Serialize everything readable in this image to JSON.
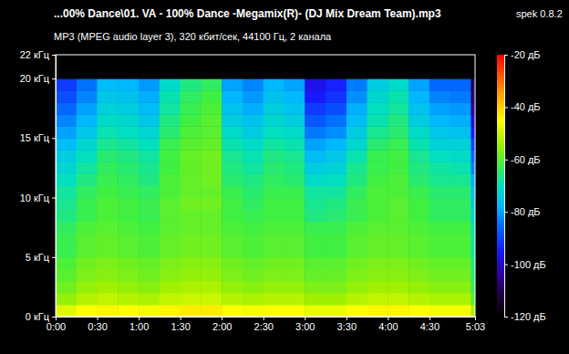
{
  "chart_data": {
    "type": "heatmap",
    "title": "...00% Dance\\01. VA - 100% Dance -Megamix(R)- (DJ Mix Dream Team).mp3",
    "subtitle": "MP3 (MPEG audio layer 3), 320 кбит/сек, 44100 Гц, 2 канала",
    "annotations": [
      "spek 0.8.2"
    ],
    "xlim": [
      0,
      303
    ],
    "xticks": [
      {
        "value": 0,
        "label": "0:00"
      },
      {
        "value": 30,
        "label": "0:30"
      },
      {
        "value": 60,
        "label": "1:00"
      },
      {
        "value": 90,
        "label": "1:30"
      },
      {
        "value": 120,
        "label": "2:00"
      },
      {
        "value": 150,
        "label": "2:30"
      },
      {
        "value": 180,
        "label": "3:00"
      },
      {
        "value": 210,
        "label": "3:30"
      },
      {
        "value": 240,
        "label": "4:00"
      },
      {
        "value": 270,
        "label": "4:30"
      },
      {
        "value": 303,
        "label": "5:03"
      }
    ],
    "ylim": [
      0,
      22
    ],
    "yticks": [
      {
        "value": 0,
        "label": "0 кГц"
      },
      {
        "value": 5,
        "label": "5 кГц"
      },
      {
        "value": 10,
        "label": "10 кГц"
      },
      {
        "value": 15,
        "label": "15 кГц"
      },
      {
        "value": 20,
        "label": "20 кГц"
      },
      {
        "value": 22,
        "label": "22 кГц"
      }
    ],
    "x_bins": [
      0,
      15,
      30,
      45,
      60,
      75,
      90,
      105,
      120,
      135,
      150,
      165,
      180,
      195,
      210,
      225,
      240,
      255,
      270,
      285,
      300,
      303
    ],
    "y_bins": [
      0,
      1,
      2,
      3,
      4,
      5,
      6,
      7,
      8,
      9,
      10,
      11,
      12,
      13,
      14,
      15,
      16,
      17,
      18,
      19,
      20,
      21,
      22
    ],
    "cells": [
      [
        -48,
        -45,
        -44,
        -45,
        -46,
        -44,
        -43,
        -43,
        -45,
        -46,
        -45,
        -45,
        -47,
        -47,
        -45,
        -44,
        -44,
        -45,
        -46,
        -46,
        -53
      ],
      [
        -55,
        -52,
        -51,
        -52,
        -53,
        -51,
        -50,
        -50,
        -52,
        -53,
        -52,
        -52,
        -54,
        -54,
        -52,
        -51,
        -51,
        -52,
        -53,
        -53,
        -60
      ],
      [
        -58,
        -55,
        -54,
        -55,
        -56,
        -54,
        -53,
        -53,
        -55,
        -56,
        -55,
        -55,
        -57,
        -57,
        -55,
        -54,
        -54,
        -55,
        -56,
        -56,
        -63
      ],
      [
        -60,
        -57,
        -56,
        -57,
        -58,
        -56,
        -55,
        -55,
        -57,
        -58,
        -57,
        -57,
        -59,
        -59,
        -57,
        -56,
        -56,
        -57,
        -58,
        -58,
        -65
      ],
      [
        -61,
        -58,
        -57,
        -58,
        -59,
        -57,
        -56,
        -56,
        -58,
        -59,
        -58,
        -58,
        -60,
        -60,
        -58,
        -57,
        -57,
        -58,
        -59,
        -59,
        -66
      ],
      [
        -63,
        -60,
        -59,
        -60,
        -61,
        -59,
        -58,
        -58,
        -60,
        -61,
        -60,
        -60,
        -62,
        -62,
        -60,
        -59,
        -59,
        -60,
        -61,
        -61,
        -68
      ],
      [
        -63,
        -60,
        -59,
        -60,
        -61,
        -59,
        -58,
        -58,
        -60,
        -61,
        -60,
        -60,
        -62,
        -62,
        -60,
        -59,
        -59,
        -60,
        -61,
        -61,
        -68
      ],
      [
        -64,
        -61,
        -60,
        -61,
        -62,
        -60,
        -59,
        -59,
        -61,
        -62,
        -61,
        -61,
        -63,
        -63,
        -61,
        -60,
        -60,
        -61,
        -62,
        -62,
        -69
      ],
      [
        -66,
        -63,
        -61,
        -62,
        -63,
        -60,
        -59,
        -59,
        -62,
        -63,
        -62,
        -62,
        -66,
        -65,
        -63,
        -61,
        -60,
        -62,
        -64,
        -64,
        -72
      ],
      [
        -67,
        -63,
        -61,
        -62,
        -63,
        -60,
        -58,
        -58,
        -62,
        -64,
        -62,
        -62,
        -67,
        -66,
        -63,
        -61,
        -60,
        -62,
        -64,
        -64,
        -74
      ],
      [
        -68,
        -64,
        -62,
        -63,
        -64,
        -61,
        -59,
        -59,
        -63,
        -65,
        -63,
        -63,
        -68,
        -68,
        -64,
        -61,
        -61,
        -63,
        -65,
        -65,
        -76
      ],
      [
        -70,
        -66,
        -63,
        -64,
        -66,
        -61,
        -59,
        -58,
        -65,
        -66,
        -64,
        -65,
        -71,
        -70,
        -66,
        -62,
        -61,
        -65,
        -67,
        -67,
        -79
      ],
      [
        -72,
        -68,
        -64,
        -65,
        -67,
        -62,
        -59,
        -58,
        -66,
        -68,
        -65,
        -66,
        -74,
        -73,
        -67,
        -63,
        -62,
        -66,
        -68,
        -69,
        -83
      ],
      [
        -74,
        -70,
        -65,
        -66,
        -68,
        -62,
        -59,
        -58,
        -67,
        -69,
        -66,
        -67,
        -77,
        -75,
        -69,
        -63,
        -62,
        -67,
        -70,
        -71,
        -86
      ],
      [
        -77,
        -72,
        -67,
        -68,
        -70,
        -63,
        -60,
        -59,
        -69,
        -71,
        -68,
        -69,
        -80,
        -78,
        -72,
        -65,
        -63,
        -69,
        -73,
        -73,
        -90
      ],
      [
        -80,
        -75,
        -69,
        -70,
        -72,
        -65,
        -61,
        -60,
        -71,
        -74,
        -70,
        -71,
        -84,
        -82,
        -74,
        -67,
        -65,
        -71,
        -75,
        -76,
        -95
      ],
      [
        -83,
        -78,
        -71,
        -72,
        -75,
        -66,
        -62,
        -60,
        -74,
        -76,
        -72,
        -74,
        -88,
        -85,
        -77,
        -69,
        -66,
        -74,
        -78,
        -79,
        -99
      ],
      [
        -86,
        -80,
        -73,
        -74,
        -77,
        -68,
        -63,
        -61,
        -76,
        -79,
        -74,
        -76,
        -91,
        -89,
        -79,
        -70,
        -68,
        -76,
        -80,
        -81,
        -104
      ],
      [
        -89,
        -83,
        -75,
        -76,
        -79,
        -69,
        -64,
        -62,
        -78,
        -81,
        -76,
        -78,
        -95,
        -92,
        -82,
        -72,
        -69,
        -78,
        -83,
        -84,
        -108
      ],
      [
        -91,
        -85,
        -77,
        -78,
        -81,
        -71,
        -66,
        -64,
        -80,
        -83,
        -78,
        -80,
        -97,
        -94,
        -84,
        -74,
        -71,
        -80,
        -86,
        -86,
        -110
      ],
      [
        -120,
        -120,
        -120,
        -120,
        -120,
        -120,
        -120,
        -120,
        -120,
        -120,
        -120,
        -120,
        -120,
        -120,
        -120,
        -120,
        -120,
        -120,
        -120,
        -120,
        -120
      ],
      [
        -120,
        -120,
        -120,
        -120,
        -120,
        -120,
        -120,
        -120,
        -120,
        -120,
        -120,
        -120,
        -120,
        -120,
        -120,
        -120,
        -120,
        -120,
        -120,
        -120,
        -120
      ]
    ],
    "colorbar": {
      "range": [
        -120,
        -20
      ],
      "ticks": [
        {
          "value": -20,
          "label": "-20 дБ"
        },
        {
          "value": -40,
          "label": "-40 дБ"
        },
        {
          "value": -60,
          "label": "-60 дБ"
        },
        {
          "value": -80,
          "label": "-80 дБ"
        },
        {
          "value": -100,
          "label": "-100 дБ"
        },
        {
          "value": -120,
          "label": "-120 дБ"
        }
      ]
    }
  }
}
